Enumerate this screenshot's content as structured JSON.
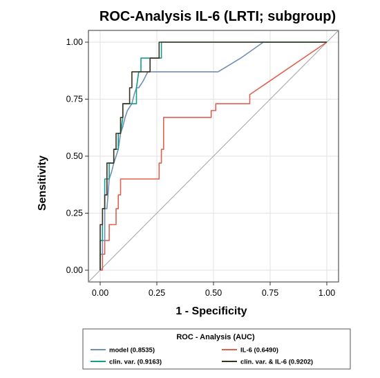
{
  "chart_data": {
    "type": "line",
    "title": "ROC-Analysis IL-6 (LRTI; subgroup)",
    "xlabel": "1 - Specificity",
    "ylabel": "Sensitivity",
    "xlim": [
      0,
      1
    ],
    "ylim": [
      0,
      1
    ],
    "xticks": [
      "0.00",
      "0.25",
      "0.50",
      "0.75",
      "1.00"
    ],
    "yticks": [
      "0.00",
      "0.25",
      "0.50",
      "0.75",
      "1.00"
    ],
    "grid": true,
    "legend_position": "bottom",
    "legend_title": "ROC - Analysis (AUC)",
    "reference_line": {
      "x": [
        0,
        1
      ],
      "y": [
        0,
        1
      ],
      "color": "#a0a0a0"
    },
    "series": [
      {
        "name": "model (0.8535)",
        "color": "#6f8fb6",
        "x": [
          0,
          0,
          0.01,
          0.01,
          0.02,
          0.02,
          0.03,
          0.04,
          0.05,
          0.06,
          0.07,
          0.08,
          0.09,
          0.1,
          0.11,
          0.12,
          0.14,
          0.15,
          0.16,
          0.17,
          0.19,
          0.21,
          0.52,
          0.62,
          0.72,
          1.0
        ],
        "y": [
          0,
          0.07,
          0.07,
          0.13,
          0.13,
          0.27,
          0.27,
          0.4,
          0.43,
          0.47,
          0.5,
          0.53,
          0.6,
          0.63,
          0.67,
          0.7,
          0.73,
          0.77,
          0.8,
          0.8,
          0.83,
          0.87,
          0.87,
          0.93,
          1.0,
          1.0
        ]
      },
      {
        "name": "IL-6 (0.6490)",
        "color": "#e06050",
        "x": [
          0,
          0.01,
          0.01,
          0.02,
          0.02,
          0.04,
          0.04,
          0.07,
          0.07,
          0.08,
          0.08,
          0.09,
          0.09,
          0.26,
          0.26,
          0.27,
          0.27,
          0.28,
          0.28,
          0.49,
          0.49,
          0.51,
          0.51,
          0.66,
          0.66,
          1.0
        ],
        "y": [
          0,
          0,
          0.07,
          0.07,
          0.13,
          0.13,
          0.2,
          0.2,
          0.27,
          0.27,
          0.33,
          0.33,
          0.4,
          0.4,
          0.47,
          0.47,
          0.53,
          0.53,
          0.67,
          0.67,
          0.7,
          0.7,
          0.73,
          0.73,
          0.77,
          1.0
        ]
      },
      {
        "name": "clin. var. (0.9163)",
        "color": "#139c8b",
        "x": [
          0,
          0,
          0.01,
          0.01,
          0.02,
          0.02,
          0.04,
          0.04,
          0.06,
          0.06,
          0.08,
          0.08,
          0.09,
          0.1,
          0.1,
          0.12,
          0.13,
          0.13,
          0.16,
          0.16,
          0.17,
          0.18,
          0.18,
          0.21,
          0.21,
          0.27,
          0.27,
          1.0
        ],
        "y": [
          0,
          0.13,
          0.13,
          0.27,
          0.27,
          0.4,
          0.4,
          0.47,
          0.47,
          0.53,
          0.53,
          0.6,
          0.6,
          0.67,
          0.73,
          0.73,
          0.73,
          0.73,
          0.73,
          0.8,
          0.87,
          0.87,
          0.93,
          0.93,
          0.93,
          0.93,
          1.0,
          1.0
        ]
      },
      {
        "name": "clin. var. & IL-6 (0.9202)",
        "color": "#3b3020",
        "x": [
          0,
          0,
          0.01,
          0.01,
          0.02,
          0.02,
          0.03,
          0.03,
          0.06,
          0.06,
          0.07,
          0.07,
          0.09,
          0.09,
          0.1,
          0.1,
          0.13,
          0.13,
          0.14,
          0.14,
          0.15,
          0.15,
          0.22,
          0.22,
          0.26,
          0.26,
          1.0
        ],
        "y": [
          0,
          0.2,
          0.2,
          0.27,
          0.27,
          0.33,
          0.33,
          0.47,
          0.47,
          0.53,
          0.53,
          0.6,
          0.6,
          0.67,
          0.67,
          0.73,
          0.73,
          0.8,
          0.8,
          0.87,
          0.87,
          0.87,
          0.87,
          0.93,
          0.93,
          1.0,
          1.0
        ]
      }
    ]
  }
}
